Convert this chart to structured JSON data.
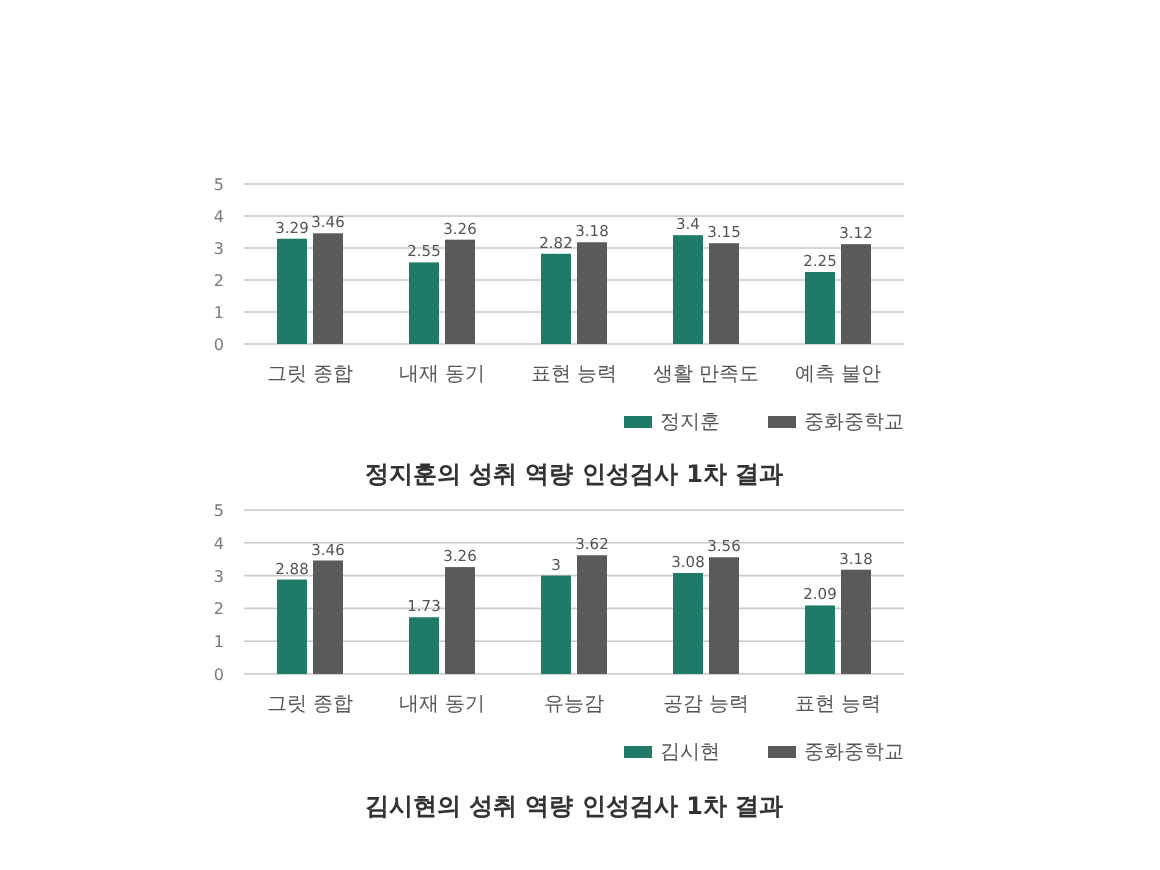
{
  "chart_data": [
    {
      "type": "bar",
      "title": "정지훈의 성취 역량 인성검사 1차 결과",
      "categories": [
        "그릿 종합",
        "내재 동기",
        "표현 능력",
        "생활 만족도",
        "예측 불안"
      ],
      "series": [
        {
          "name": "정지훈",
          "color": "#1f7a68",
          "values": [
            3.29,
            2.55,
            2.82,
            3.4,
            2.25
          ]
        },
        {
          "name": "중화중학교",
          "color": "#5a595c",
          "values": [
            3.46,
            3.26,
            3.18,
            3.15,
            3.12
          ]
        }
      ],
      "ylim": [
        0,
        5
      ],
      "yticks": [
        0,
        1,
        2,
        3,
        4,
        5
      ],
      "grid": "y",
      "legend": "bottom right",
      "data_labels": true
    },
    {
      "type": "bar",
      "title": "김시현의 성취 역량 인성검사 1차 결과",
      "categories": [
        "그릿 종합",
        "내재 동기",
        "유능감",
        "공감 능력",
        "표현 능력"
      ],
      "series": [
        {
          "name": "김시현",
          "color": "#1f7a68",
          "values": [
            2.88,
            1.73,
            3,
            3.08,
            2.09
          ]
        },
        {
          "name": "중화중학교",
          "color": "#5a595c",
          "values": [
            3.46,
            3.26,
            3.62,
            3.56,
            3.18
          ]
        }
      ],
      "ylim": [
        0,
        5
      ],
      "yticks": [
        0,
        1,
        2,
        3,
        4,
        5
      ],
      "grid": "y",
      "legend": "bottom right",
      "data_labels": true
    }
  ]
}
